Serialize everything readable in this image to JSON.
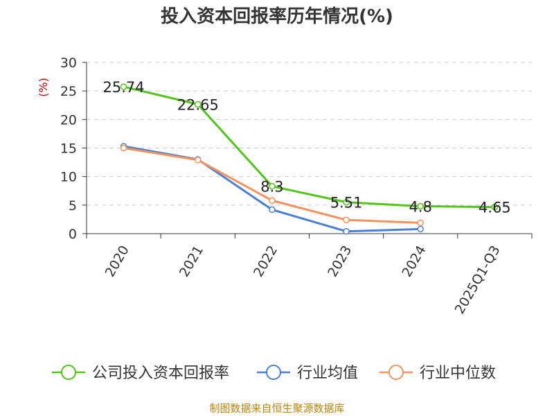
{
  "chart_data": {
    "type": "line",
    "title": "投入资本回报率历年情况(%)",
    "ylabel": "(%)",
    "xlabel": "",
    "categories": [
      "2020",
      "2021",
      "2022",
      "2023",
      "2024",
      "2025Q1-Q3"
    ],
    "ylim": [
      0,
      30
    ],
    "yticks": [
      0,
      5,
      10,
      15,
      20,
      25,
      30
    ],
    "grid": true,
    "legend_position": "bottom",
    "series": [
      {
        "name": "公司投入资本回报率",
        "color": "#52c41a",
        "values": [
          25.74,
          22.65,
          8.3,
          5.51,
          4.8,
          4.65
        ],
        "labels": [
          "25.74",
          "22.65",
          "8.3",
          "5.51",
          "4.8",
          "4.65"
        ]
      },
      {
        "name": "行业均值",
        "color": "#4a7fd6",
        "values": [
          15.3,
          13.0,
          4.2,
          0.4,
          0.8,
          null
        ]
      },
      {
        "name": "行业中位数",
        "color": "#f5925e",
        "values": [
          15.0,
          12.9,
          5.8,
          2.4,
          1.9,
          null
        ]
      }
    ]
  },
  "source": "制图数据来自恒生聚源数据库"
}
